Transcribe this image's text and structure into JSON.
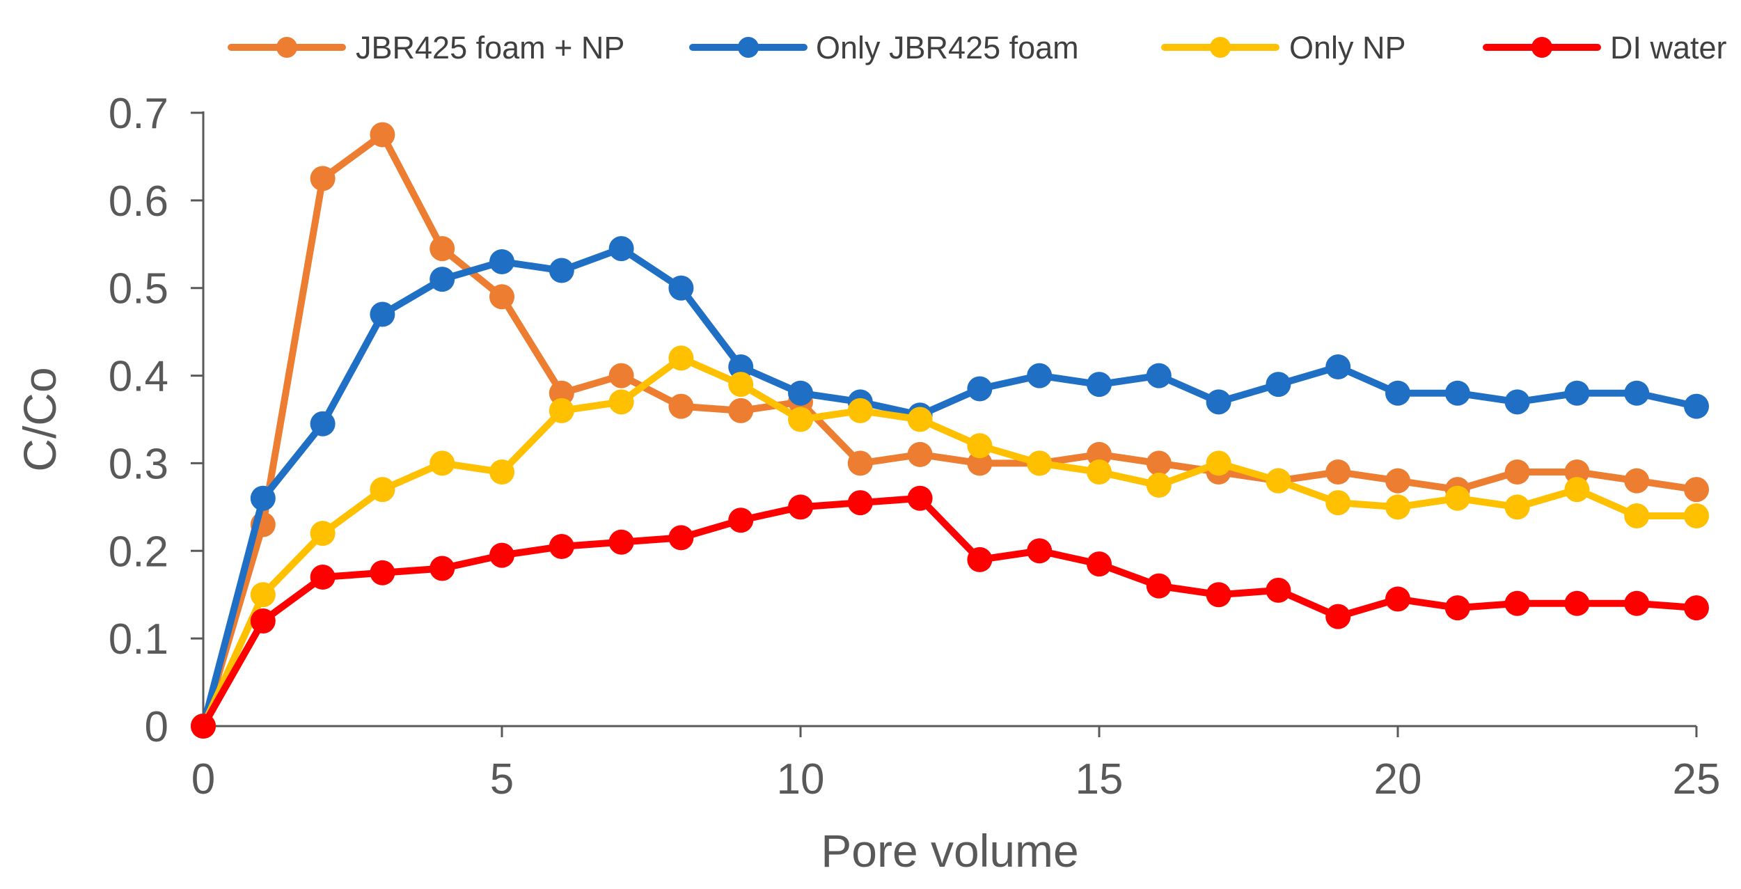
{
  "chart_data": {
    "type": "line",
    "title": "",
    "xlabel": "Pore volume",
    "ylabel": "C/Co",
    "xlim": [
      0,
      25
    ],
    "ylim": [
      0,
      0.7
    ],
    "xticks": [
      0,
      5,
      10,
      15,
      20,
      25
    ],
    "yticks": [
      0,
      0.1,
      0.2,
      0.3,
      0.4,
      0.5,
      0.6,
      0.7
    ],
    "grid": false,
    "legend_position": "top",
    "x": [
      0,
      1,
      2,
      3,
      4,
      5,
      6,
      7,
      8,
      9,
      10,
      11,
      12,
      13,
      14,
      15,
      16,
      17,
      18,
      19,
      20,
      21,
      22,
      23,
      24,
      25
    ],
    "series": [
      {
        "name": "JBR425 foam + NP",
        "color": "#ED7D31",
        "values": [
          0,
          0.23,
          0.625,
          0.675,
          0.545,
          0.49,
          0.38,
          0.4,
          0.365,
          0.36,
          0.37,
          0.3,
          0.31,
          0.3,
          0.3,
          0.31,
          0.3,
          0.29,
          0.28,
          0.29,
          0.28,
          0.27,
          0.29,
          0.29,
          0.28,
          0.27
        ]
      },
      {
        "name": "Only JBR425 foam",
        "color": "#1F6FC5",
        "values": [
          0,
          0.26,
          0.345,
          0.47,
          0.51,
          0.53,
          0.52,
          0.545,
          0.5,
          0.41,
          0.38,
          0.37,
          0.355,
          0.385,
          0.4,
          0.39,
          0.4,
          0.37,
          0.39,
          0.41,
          0.38,
          0.38,
          0.37,
          0.38,
          0.38,
          0.365
        ]
      },
      {
        "name": "Only NP",
        "color": "#FFC000",
        "values": [
          0,
          0.15,
          0.22,
          0.27,
          0.3,
          0.29,
          0.36,
          0.37,
          0.42,
          0.39,
          0.35,
          0.36,
          0.35,
          0.32,
          0.3,
          0.29,
          0.275,
          0.3,
          0.28,
          0.255,
          0.25,
          0.26,
          0.25,
          0.27,
          0.24,
          0.24
        ]
      },
      {
        "name": "DI water",
        "color": "#FF0000",
        "values": [
          0,
          0.12,
          0.17,
          0.175,
          0.18,
          0.195,
          0.205,
          0.21,
          0.215,
          0.235,
          0.25,
          0.255,
          0.26,
          0.19,
          0.2,
          0.185,
          0.16,
          0.15,
          0.155,
          0.125,
          0.145,
          0.135,
          0.14,
          0.14,
          0.14,
          0.135
        ]
      }
    ]
  }
}
